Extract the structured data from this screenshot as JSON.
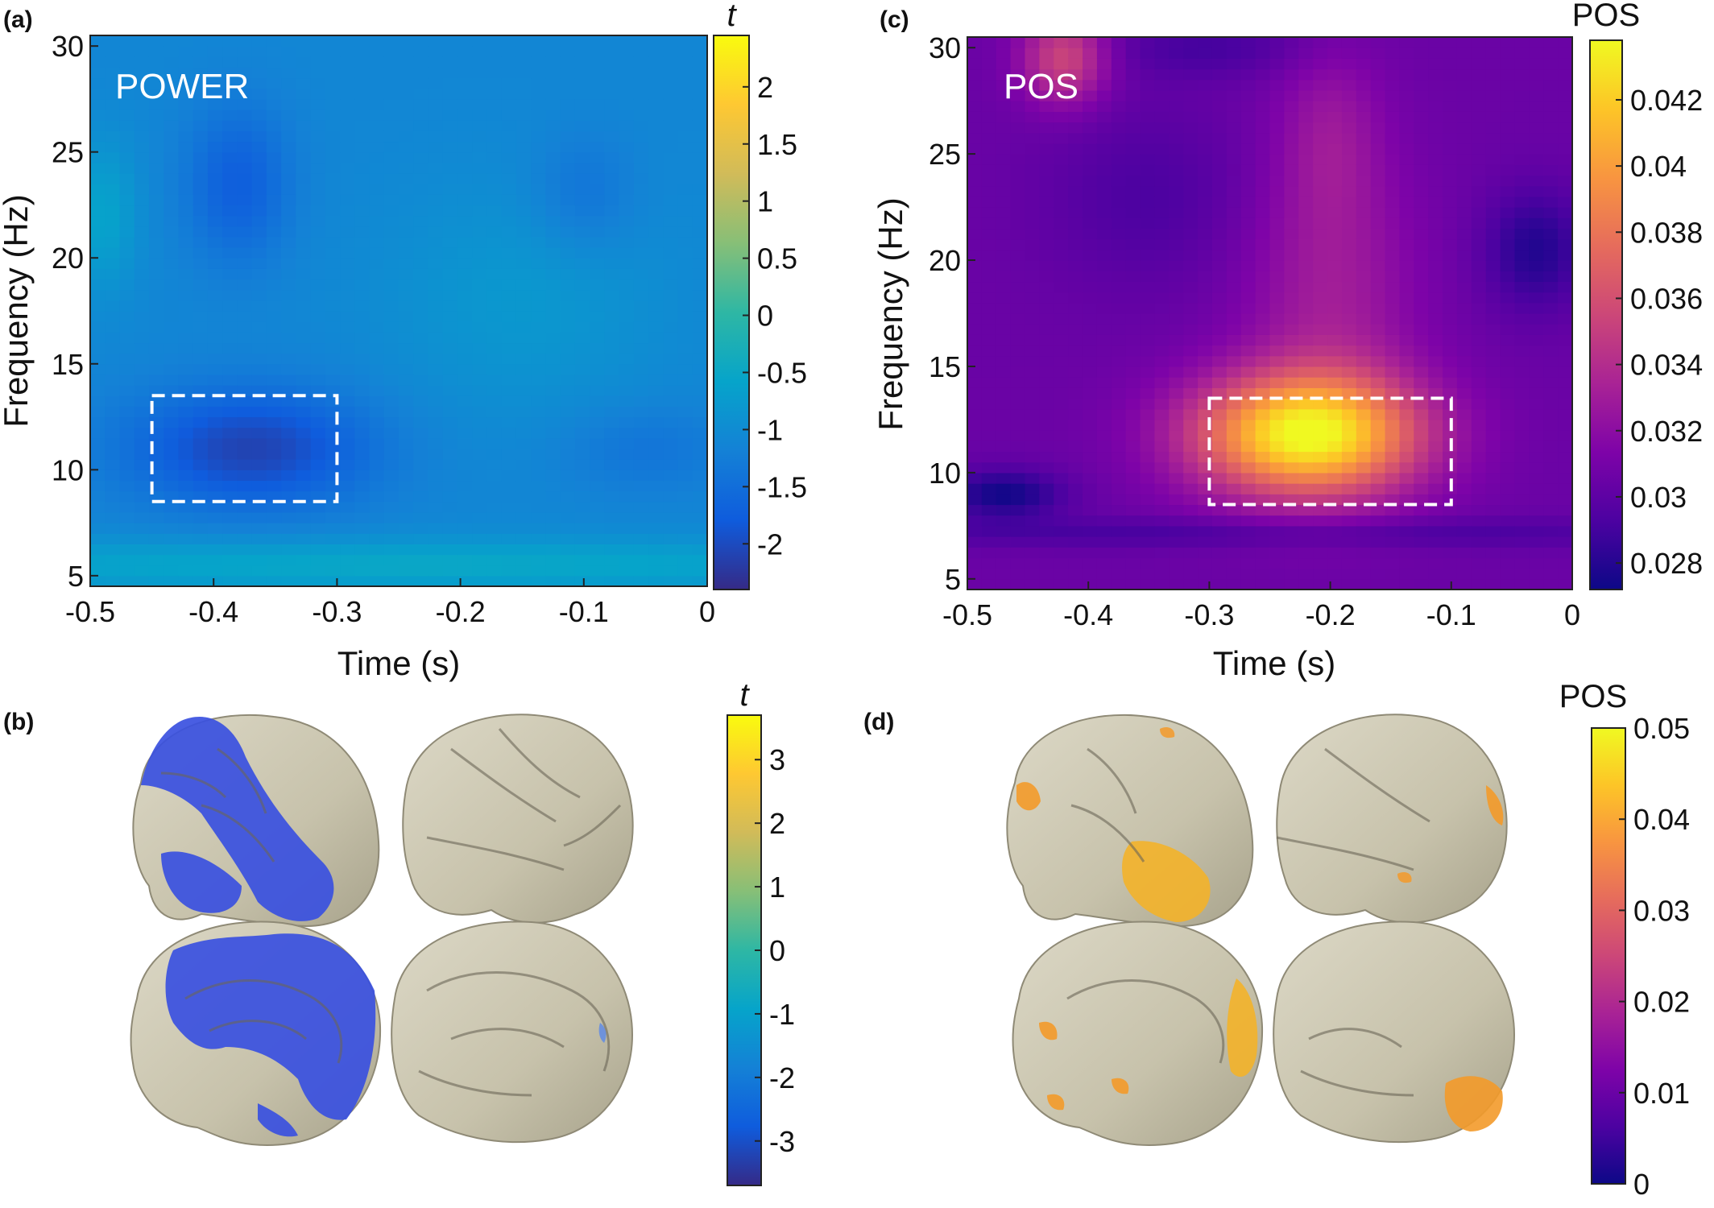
{
  "chart_data": [
    {
      "panel": "(a)",
      "type": "heatmap",
      "inset_label": "POWER",
      "xlabel": "Time (s)",
      "ylabel": "Frequency (Hz)",
      "xlim": [
        -0.5,
        0
      ],
      "ylim": [
        4.5,
        30.5
      ],
      "xticks": [
        "-0.5",
        "-0.4",
        "-0.3",
        "-0.2",
        "-0.1",
        "0"
      ],
      "yticks": [
        "5",
        "10",
        "15",
        "20",
        "25",
        "30"
      ],
      "colorbar": {
        "title": "t",
        "range": [
          -2.4,
          2.45
        ],
        "ticks": [
          "-2",
          "-1.5",
          "-1",
          "-0.5",
          "0",
          "0.5",
          "1",
          "1.5",
          "2"
        ],
        "colormap": "parula"
      },
      "roi": {
        "time": [
          -0.45,
          -0.3
        ],
        "freq": [
          8.5,
          13.5
        ]
      },
      "baseline": -1.1,
      "features": [
        {
          "t": -0.37,
          "f": 11,
          "st": 0.07,
          "sf": 2.0,
          "a": -1.0
        },
        {
          "t": -0.38,
          "f": 23.5,
          "st": 0.03,
          "sf": 2.6,
          "a": -0.65
        },
        {
          "t": -0.15,
          "f": 18,
          "st": 0.08,
          "sf": 4.0,
          "a": 0.3
        },
        {
          "t": -0.49,
          "f": 22,
          "st": 0.02,
          "sf": 2.5,
          "a": 0.5
        },
        {
          "t": -0.25,
          "f": 5.5,
          "st": 0.4,
          "sf": 0.9,
          "a": 0.6
        },
        {
          "t": -0.1,
          "f": 23,
          "st": 0.03,
          "sf": 2.0,
          "a": -0.35
        },
        {
          "t": -0.05,
          "f": 11,
          "st": 0.05,
          "sf": 1.5,
          "a": -0.3
        }
      ]
    },
    {
      "panel": "(c)",
      "type": "heatmap",
      "inset_label": "POS",
      "xlabel": "Time (s)",
      "ylabel": "Frequency (Hz)",
      "xlim": [
        -0.5,
        0
      ],
      "ylim": [
        4.5,
        30.5
      ],
      "xticks": [
        "-0.5",
        "-0.4",
        "-0.3",
        "-0.2",
        "-0.1",
        "0"
      ],
      "yticks": [
        "5",
        "10",
        "15",
        "20",
        "25",
        "30"
      ],
      "colorbar": {
        "title": "POS",
        "range": [
          0.0272,
          0.0438
        ],
        "ticks": [
          "0.028",
          "0.03",
          "0.032",
          "0.034",
          "0.036",
          "0.038",
          "0.04",
          "0.042"
        ],
        "colormap": "plasma"
      },
      "roi": {
        "time": [
          -0.3,
          -0.1
        ],
        "freq": [
          8.5,
          13.5
        ]
      },
      "baseline": 0.0305,
      "features": [
        {
          "t": -0.22,
          "f": 11.8,
          "st": 0.065,
          "sf": 2.0,
          "a": 0.0128
        },
        {
          "t": -0.2,
          "f": 18,
          "st": 0.05,
          "sf": 5.0,
          "a": 0.0025
        },
        {
          "t": -0.2,
          "f": 26,
          "st": 0.03,
          "sf": 3.0,
          "a": 0.0018
        },
        {
          "t": -0.42,
          "f": 29.5,
          "st": 0.025,
          "sf": 1.5,
          "a": 0.005
        },
        {
          "t": -0.47,
          "f": 9.0,
          "st": 0.035,
          "sf": 0.8,
          "a": -0.0032
        },
        {
          "t": -0.03,
          "f": 20.5,
          "st": 0.03,
          "sf": 2.0,
          "a": -0.0026
        },
        {
          "t": -0.25,
          "f": 7.2,
          "st": 0.3,
          "sf": 0.5,
          "a": -0.0015
        },
        {
          "t": -0.35,
          "f": 23,
          "st": 0.06,
          "sf": 3.0,
          "a": -0.0012
        },
        {
          "t": -0.3,
          "f": 30,
          "st": 0.06,
          "sf": 1.0,
          "a": -0.0014
        }
      ]
    },
    {
      "panel": "(b)",
      "type": "brain_surface",
      "colorbar": {
        "title": "t",
        "range": [
          -3.7,
          3.7
        ],
        "ticks": [
          "-3",
          "-2",
          "-1",
          "0",
          "1",
          "2",
          "3"
        ],
        "colormap": "parula"
      },
      "highlight_color": "#3a50e0"
    },
    {
      "panel": "(d)",
      "type": "brain_surface",
      "colorbar": {
        "title": "POS",
        "range": [
          0,
          0.05
        ],
        "ticks": [
          "0",
          "0.01",
          "0.02",
          "0.03",
          "0.04",
          "0.05"
        ],
        "colormap": "plasma"
      },
      "highlight_color": "#f39a2a"
    }
  ]
}
